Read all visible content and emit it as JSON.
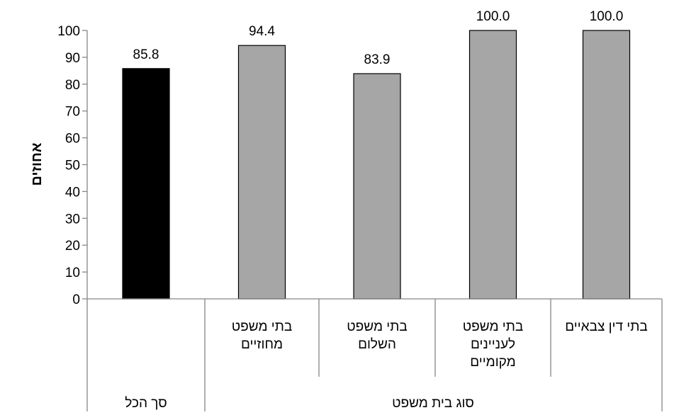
{
  "chart_data": {
    "type": "bar",
    "title": "",
    "ylabel": "אחוזים",
    "xlabel": "",
    "ylim": [
      0,
      100
    ],
    "yticks": [
      "0",
      "10",
      "20",
      "30",
      "40",
      "50",
      "60",
      "70",
      "80",
      "90",
      "100"
    ],
    "categories": [
      "סך הכל",
      "בתי משפט מחוזיים",
      "בתי משפט השלום",
      "בתי משפט לעניינים מקומיים",
      "בתי דין צבאיים"
    ],
    "category_lines": [
      [],
      [
        "בתי משפט",
        "מחוזיים"
      ],
      [
        "בתי משפט",
        "השלום"
      ],
      [
        "בתי  משפט",
        "לעניינים",
        "מקומיים"
      ],
      [
        "בתי דין צבאיים"
      ]
    ],
    "values": [
      85.8,
      94.4,
      83.9,
      100.0,
      100.0
    ],
    "data_labels": [
      "85.8",
      "94.4",
      "83.9",
      "100.0",
      "100.0"
    ],
    "groups": [
      {
        "label": "סך הכל",
        "members": [
          0
        ]
      },
      {
        "label": "סוג בית משפט",
        "members": [
          1,
          2,
          3,
          4
        ]
      }
    ],
    "colors": {
      "total": "#000000",
      "bars": "#a6a6a6"
    },
    "grid": false,
    "legend": "none"
  }
}
